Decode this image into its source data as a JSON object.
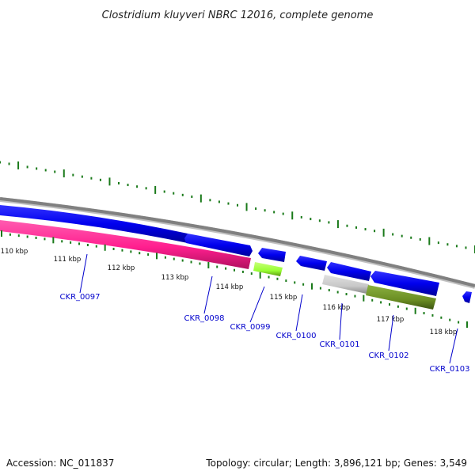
{
  "title": "Clostridium kluyveri NBRC 12016, complete genome",
  "footer": {
    "accession": "Accession: NC_011837",
    "summary": "Topology: circular; Length: 3,896,121 bp; Genes: 3,549"
  },
  "ticks": [
    {
      "label": "110 kbp"
    },
    {
      "label": "111 kbp"
    },
    {
      "label": "112 kbp"
    },
    {
      "label": "113 kbp"
    },
    {
      "label": "114 kbp"
    },
    {
      "label": "115 kbp"
    },
    {
      "label": "116 kbp"
    },
    {
      "label": "117 kbp"
    },
    {
      "label": "118 kbp"
    }
  ],
  "gene_labels": [
    {
      "label": "CKR_0097"
    },
    {
      "label": "CKR_0098"
    },
    {
      "label": "CKR_0099"
    },
    {
      "label": "CKR_0100"
    },
    {
      "label": "CKR_0101"
    },
    {
      "label": "CKR_0102"
    },
    {
      "label": "CKR_0103"
    }
  ],
  "colors": {
    "backbone": "#808080",
    "strand_blue": "#0000ee",
    "magenta": "#ff1f8f",
    "lime": "#99ff33",
    "grey_gene": "#c8c8c8",
    "olive": "#6b8e23",
    "tick_green": "#1a7a1a",
    "label_blue": "#0000cc"
  }
}
